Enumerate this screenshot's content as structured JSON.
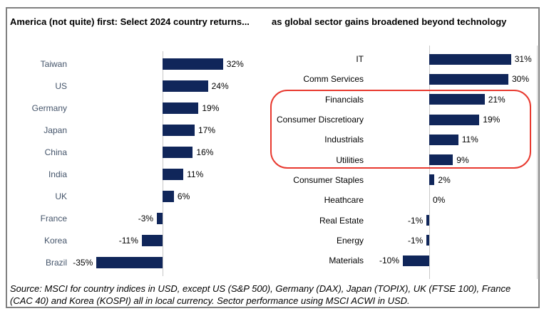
{
  "titles": {
    "left": "America (not quite) first: Select 2024 country returns...",
    "right": "as global sector gains broadened beyond technology"
  },
  "footer": {
    "lines": [
      "Source: MSCI for country indices in USD, except US (S&P 500), Germany (DAX), Japan (TOPIX), UK (FTSE 100), France",
      "(CAC 40) and Korea (KOSPI) all in local currency. Sector performance using MSCI ACWI in USD."
    ]
  },
  "colors": {
    "bar": "#10265a",
    "category_label_left": "#44546A",
    "category_label_right": "#000000",
    "value_label": "#000000",
    "axis_line": "#c8c8c8",
    "border": "#808080",
    "highlight_box": "#e8392f"
  },
  "chart_data": [
    {
      "type": "bar",
      "orientation": "horizontal",
      "title": "America (not quite) first: Select 2024 country returns...",
      "categories": [
        "Taiwan",
        "US",
        "Germany",
        "Japan",
        "China",
        "India",
        "UK",
        "France",
        "Korea",
        "Brazil"
      ],
      "values": [
        32,
        24,
        19,
        17,
        16,
        11,
        6,
        -3,
        -11,
        -35
      ],
      "value_labels": [
        "32%",
        "24%",
        "19%",
        "17%",
        "16%",
        "11%",
        "6%",
        "-3%",
        "-11%",
        "-35%"
      ],
      "unit": "%",
      "xlim": [
        -35,
        45
      ],
      "grid": false,
      "legend": "none"
    },
    {
      "type": "bar",
      "orientation": "horizontal",
      "title": "as global sector gains broadened beyond technology",
      "categories": [
        "IT",
        "Comm Services",
        "Financials",
        "Consumer Discretioary",
        "Industrials",
        "Utilities",
        "Consumer Staples",
        "Heathcare",
        "Real Estate",
        "Energy",
        "Materials"
      ],
      "values": [
        31,
        30,
        21,
        19,
        11,
        9,
        2,
        0,
        -1,
        -1,
        -10
      ],
      "value_labels": [
        "31%",
        "30%",
        "21%",
        "19%",
        "11%",
        "9%",
        "2%",
        "0%",
        "-1%",
        "-1%",
        "-10%"
      ],
      "unit": "%",
      "xlim": [
        -10,
        41
      ],
      "grid": false,
      "legend": "none",
      "highlighted_categories": [
        "Financials",
        "Consumer Discretioary",
        "Industrials",
        "Utilities"
      ]
    }
  ]
}
